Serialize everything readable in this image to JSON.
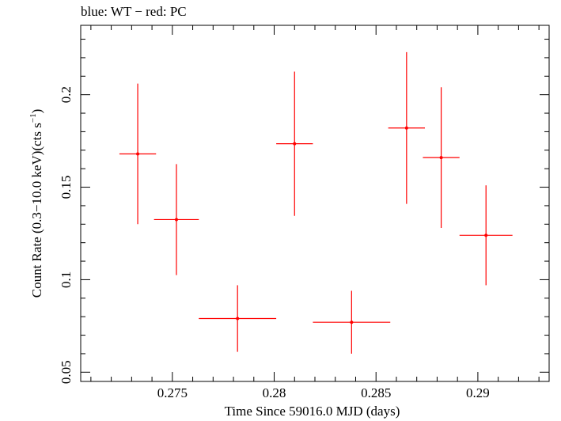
{
  "chart_data": {
    "type": "scatter",
    "title": "blue: WT − red: PC",
    "xlabel": "Time Since 59016.0 MJD (days)",
    "ylabel_main": "Count Rate (0.3−10.0 keV)(cts s",
    "ylabel_sup": "−1",
    "ylabel_close": ")",
    "xlim": [
      0.2705,
      0.2935
    ],
    "ylim": [
      0.045,
      0.2375
    ],
    "x_ticks": [
      0.275,
      0.28,
      0.285,
      0.29
    ],
    "x_tick_labels": [
      "0.275",
      "0.28",
      "0.285",
      "0.29"
    ],
    "y_ticks": [
      0.05,
      0.1,
      0.15,
      0.2
    ],
    "y_tick_labels": [
      "0.05",
      "0.1",
      "0.15",
      "0.2"
    ],
    "grid": false,
    "series": [
      {
        "color": "#ff0000",
        "points": [
          {
            "x": 0.2733,
            "y": 0.168,
            "xerr": 0.0009,
            "yerr": 0.038
          },
          {
            "x": 0.2752,
            "y": 0.1325,
            "xerr": 0.0011,
            "yerr": 0.03
          },
          {
            "x": 0.2782,
            "y": 0.079,
            "xerr": 0.0019,
            "yerr": 0.018
          },
          {
            "x": 0.281,
            "y": 0.1735,
            "xerr": 0.0009,
            "yerr": 0.039
          },
          {
            "x": 0.2838,
            "y": 0.077,
            "xerr": 0.0019,
            "yerr": 0.017
          },
          {
            "x": 0.2865,
            "y": 0.182,
            "xerr": 0.0009,
            "yerr": 0.041
          },
          {
            "x": 0.2882,
            "y": 0.166,
            "xerr": 0.0009,
            "yerr": 0.038
          },
          {
            "x": 0.2904,
            "y": 0.124,
            "xerr": 0.0013,
            "yerr": 0.027
          }
        ]
      }
    ]
  }
}
